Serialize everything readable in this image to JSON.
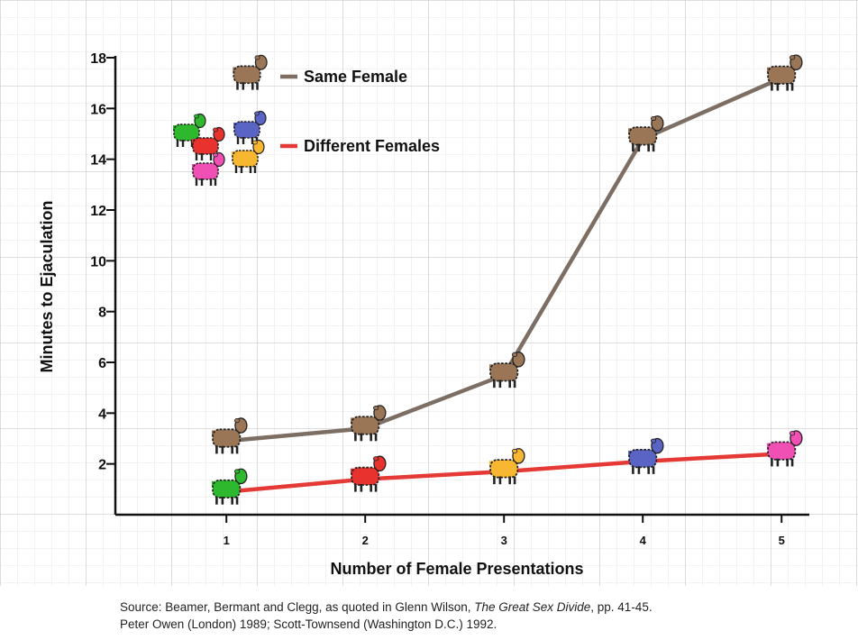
{
  "chart_data": {
    "type": "line",
    "title": "",
    "xlabel": "Number of Female Presentations",
    "ylabel": "Minutes to Ejaculation",
    "x": [
      1,
      2,
      3,
      4,
      5
    ],
    "xlim": [
      0.2,
      5.2
    ],
    "ylim": [
      0,
      18
    ],
    "yticks": [
      2,
      4,
      6,
      8,
      10,
      12,
      14,
      16,
      18
    ],
    "grid": true,
    "legend_position": "top-left",
    "series": [
      {
        "name": "Same Female",
        "color": "#7d6e64",
        "values": [
          2.9,
          3.4,
          5.5,
          14.8,
          17.2
        ],
        "marker_colors": [
          "#9a7556",
          "#9a7556",
          "#9a7556",
          "#9a7556",
          "#9a7556"
        ]
      },
      {
        "name": "Different Females",
        "color": "#e53935",
        "values": [
          0.9,
          1.4,
          1.7,
          2.1,
          2.4
        ],
        "marker_colors": [
          "#2db82e",
          "#e8322e",
          "#f7b731",
          "#5a64c4",
          "#f04fb4"
        ]
      }
    ],
    "legend_marker_colors_different": [
      "#2db82e",
      "#5a64c4",
      "#e8322e",
      "#f04fb4",
      "#f7b731"
    ]
  },
  "source": {
    "line1_before": "Source: Beamer, Bermant and Clegg, as quoted in Glenn Wilson, ",
    "line1_italic": "The Great Sex Divide",
    "line1_after": ", pp. 41-45.",
    "line2": "Peter Owen (London) 1989; Scott-Townsend (Washington D.C.) 1992."
  }
}
